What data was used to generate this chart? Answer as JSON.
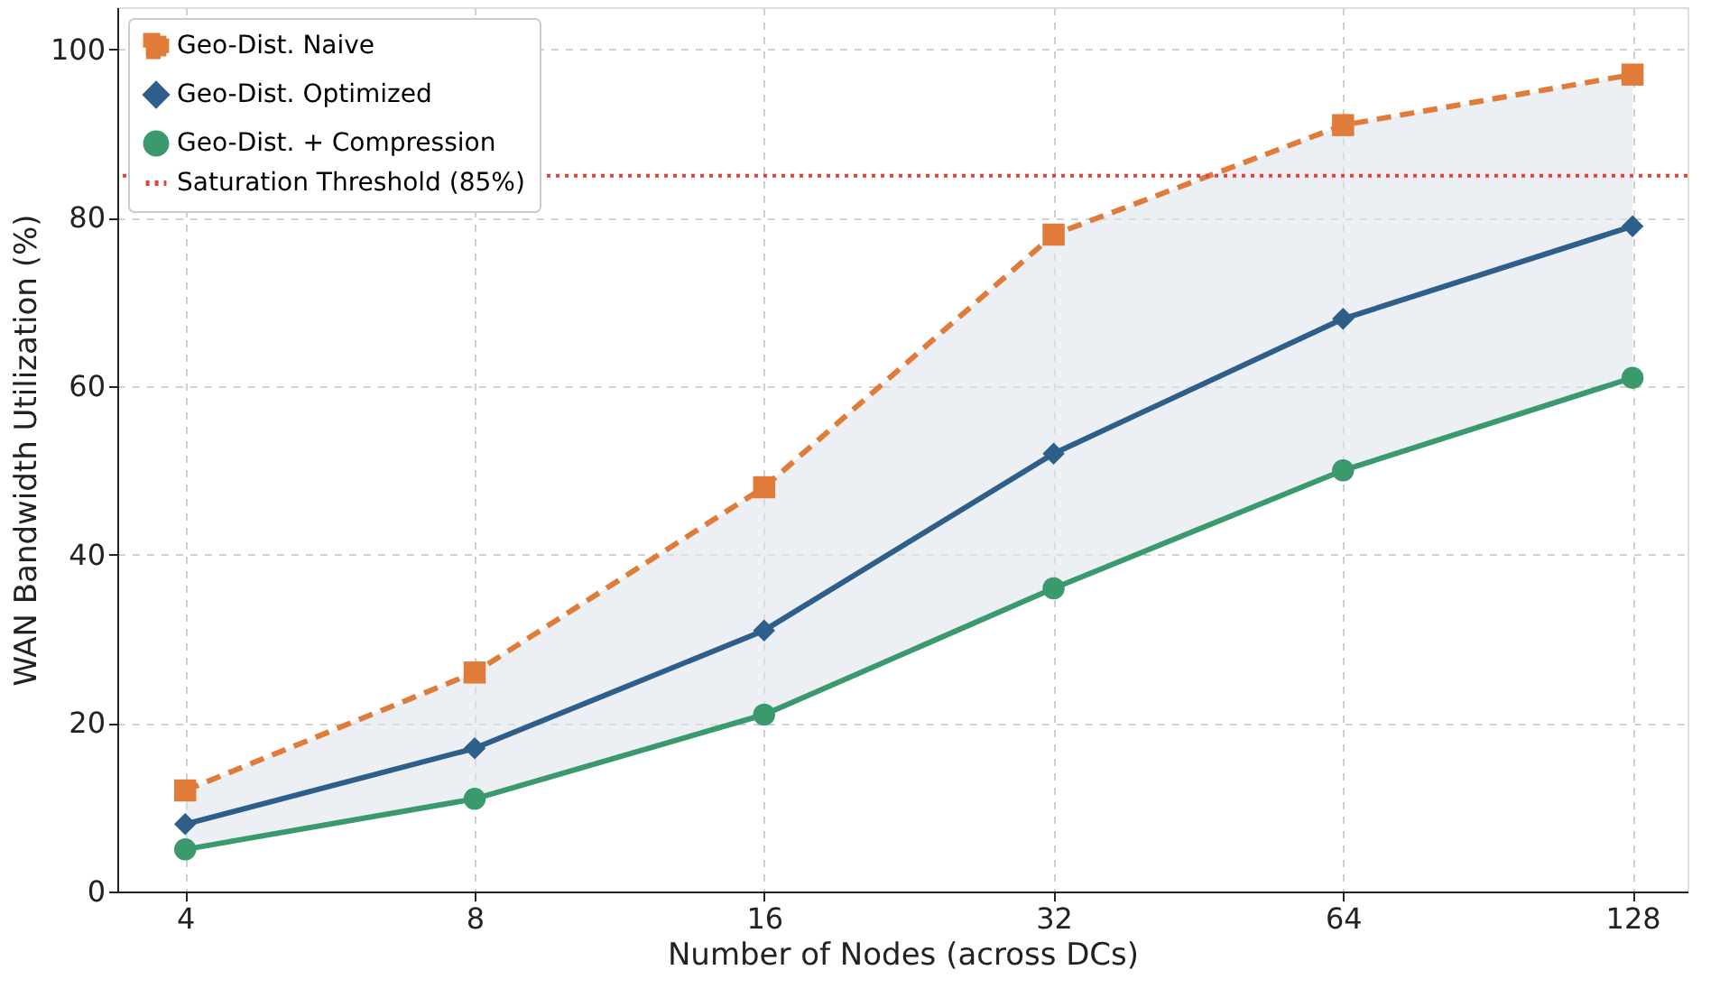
{
  "chart_data": {
    "type": "line",
    "xlabel": "Number of Nodes (across DCs)",
    "ylabel": "WAN Bandwidth Utilization (%)",
    "x": [
      4,
      8,
      16,
      32,
      64,
      128
    ],
    "log": "x",
    "xlim": [
      3.4,
      146
    ],
    "xticks": [
      4,
      8,
      16,
      32,
      64,
      128
    ],
    "ylim": [
      0,
      105
    ],
    "yticks": [
      0,
      20,
      40,
      60,
      80,
      100
    ],
    "grid": true,
    "legend": "top left",
    "series": [
      {
        "name": "Geo-Dist. Naive",
        "color": "#e07b39",
        "values": [
          12,
          26,
          48,
          78,
          91,
          97
        ],
        "marker": "square",
        "line_style": "dashed"
      },
      {
        "name": "Geo-Dist. Optimized",
        "color": "#2e5f8a",
        "values": [
          8,
          17,
          31,
          52,
          68,
          79
        ],
        "marker": "diamond",
        "line_style": "solid",
        "lower": [
          5,
          11,
          21,
          36,
          50,
          61
        ],
        "upper": [
          12,
          26,
          48,
          78,
          91,
          97
        ]
      },
      {
        "name": "Geo-Dist. + Compression",
        "color": "#3a9a6e",
        "values": [
          5,
          11,
          21,
          36,
          50,
          61
        ],
        "marker": "circle",
        "line_style": "solid"
      }
    ],
    "ref_lines": [
      {
        "axis": "y",
        "value": 85,
        "label": "Saturation Threshold (85%)",
        "color": "#e8413c",
        "line_style": "dotted"
      }
    ]
  }
}
